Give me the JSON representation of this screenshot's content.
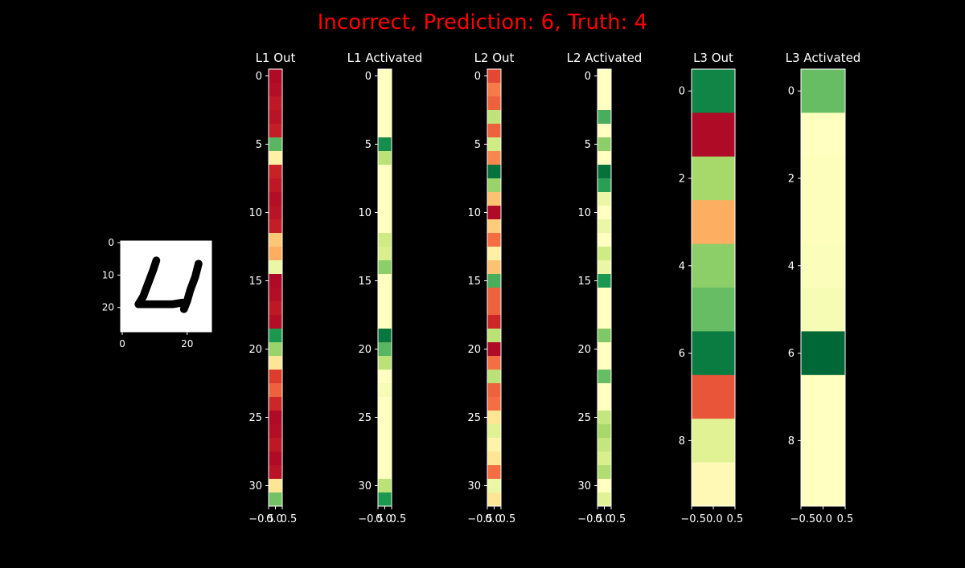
{
  "figure": {
    "title": "Incorrect, Prediction: 6, Truth: 4",
    "title_color": "#ff0000",
    "background": "#000000",
    "foreground": "#ffffff"
  },
  "chart_data": [
    {
      "type": "image",
      "title": "",
      "cmap": "gray",
      "xticks": [
        "0",
        "20"
      ],
      "yticks": [
        "0",
        "10",
        "20"
      ],
      "digit_strokes": [
        [
          [
            11,
            6
          ],
          [
            10,
            9
          ],
          [
            8.5,
            13
          ],
          [
            7,
            17
          ],
          [
            5.5,
            19.5
          ],
          [
            8,
            19.5
          ],
          [
            12,
            19.5
          ],
          [
            16,
            19.5
          ],
          [
            19,
            19
          ]
        ],
        [
          [
            24,
            7
          ],
          [
            23,
            11
          ],
          [
            21.5,
            15
          ],
          [
            20.5,
            18.5
          ],
          [
            19.5,
            21
          ]
        ]
      ]
    },
    {
      "type": "heatmap",
      "title": "L1 Out",
      "cmap": "RdYlGn",
      "values": [
        0.02,
        0.03,
        0.05,
        0.04,
        0.06,
        0.82,
        0.45,
        0.07,
        0.05,
        0.03,
        0.04,
        0.06,
        0.35,
        0.3,
        0.55,
        0.02,
        0.03,
        0.05,
        0.03,
        0.9,
        0.72,
        0.42,
        0.12,
        0.18,
        0.08,
        0.02,
        0.03,
        0.05,
        0.02,
        0.04,
        0.42,
        0.78
      ],
      "xticks": [
        "−0.5",
        "0.0",
        "0.5"
      ],
      "yticks": [
        "0",
        "5",
        "10",
        "15",
        "20",
        "25",
        "30"
      ]
    },
    {
      "type": "heatmap",
      "title": "L1 Activated",
      "cmap": "RdYlGn",
      "values": [
        0.5,
        0.5,
        0.5,
        0.5,
        0.5,
        0.92,
        0.66,
        0.5,
        0.5,
        0.5,
        0.5,
        0.5,
        0.62,
        0.6,
        0.74,
        0.5,
        0.5,
        0.5,
        0.5,
        0.97,
        0.82,
        0.66,
        0.5,
        0.52,
        0.5,
        0.5,
        0.5,
        0.5,
        0.5,
        0.5,
        0.66,
        0.9
      ],
      "xticks": [
        "−0.5",
        "0.0",
        "0.5"
      ],
      "yticks": [
        "0",
        "5",
        "10",
        "15",
        "20",
        "25",
        "30"
      ]
    },
    {
      "type": "heatmap",
      "title": "L2 Out",
      "cmap": "RdYlGn",
      "values": [
        0.14,
        0.22,
        0.18,
        0.65,
        0.18,
        0.62,
        0.24,
        0.98,
        0.72,
        0.34,
        0.02,
        0.36,
        0.2,
        0.45,
        0.34,
        0.84,
        0.18,
        0.18,
        0.08,
        0.66,
        0.02,
        0.2,
        0.66,
        0.18,
        0.2,
        0.42,
        0.58,
        0.46,
        0.42,
        0.2,
        0.55,
        0.42
      ],
      "xticks": [
        "−0.5",
        "0.0",
        "0.5"
      ],
      "yticks": [
        "0",
        "5",
        "10",
        "15",
        "20",
        "25",
        "30"
      ]
    },
    {
      "type": "heatmap",
      "title": "L2 Activated",
      "cmap": "RdYlGn",
      "values": [
        0.5,
        0.5,
        0.5,
        0.84,
        0.5,
        0.74,
        0.5,
        0.98,
        0.88,
        0.55,
        0.5,
        0.55,
        0.5,
        0.62,
        0.55,
        0.9,
        0.5,
        0.5,
        0.5,
        0.76,
        0.5,
        0.5,
        0.8,
        0.5,
        0.5,
        0.64,
        0.7,
        0.64,
        0.6,
        0.68,
        0.5,
        0.58
      ],
      "xticks": [
        "−0.5",
        "0.0",
        "0.5"
      ],
      "yticks": [
        "0",
        "5",
        "10",
        "15",
        "20",
        "25",
        "30"
      ]
    },
    {
      "type": "heatmap",
      "title": "L3 Out",
      "cmap": "RdYlGn",
      "values": [
        0.94,
        0.02,
        0.7,
        0.3,
        0.74,
        0.8,
        0.96,
        0.16,
        0.58,
        0.48
      ],
      "xticks": [
        "−0.50.0",
        "0.5"
      ],
      "yticks": [
        "0",
        "2",
        "4",
        "6",
        "8"
      ]
    },
    {
      "type": "heatmap",
      "title": "L3 Activated",
      "cmap": "RdYlGn",
      "values": [
        0.8,
        0.5,
        0.505,
        0.505,
        0.51,
        0.52,
        1.0,
        0.5,
        0.5,
        0.5
      ],
      "xticks": [
        "−0.50.0",
        "0.5"
      ],
      "yticks": [
        "0",
        "2",
        "4",
        "6",
        "8"
      ]
    }
  ]
}
